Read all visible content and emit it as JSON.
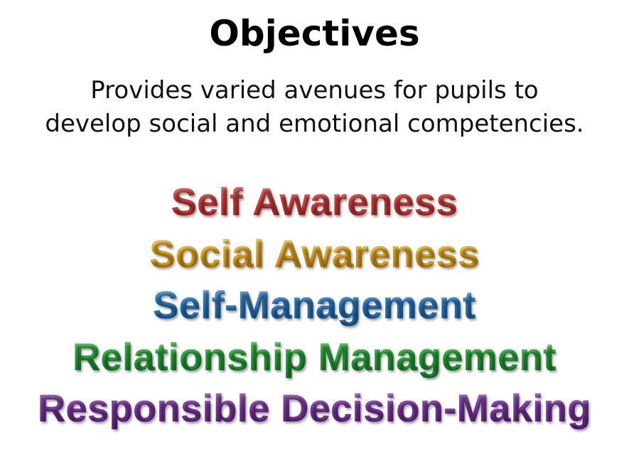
{
  "slide": {
    "title": "Objectives",
    "subtitle_lines": [
      "Provides varied avenues for pupils to",
      "develop social and emotional competencies."
    ],
    "competencies": [
      {
        "label": "Self Awareness",
        "color": "#e2453f"
      },
      {
        "label": "Social Awareness",
        "color": "#f7b820"
      },
      {
        "label": "Self-Management",
        "color": "#2f86d2"
      },
      {
        "label": "Relationship Management",
        "color": "#2cb53f"
      },
      {
        "label": "Responsible Decision-Making",
        "color": "#8a3fb0"
      }
    ]
  }
}
